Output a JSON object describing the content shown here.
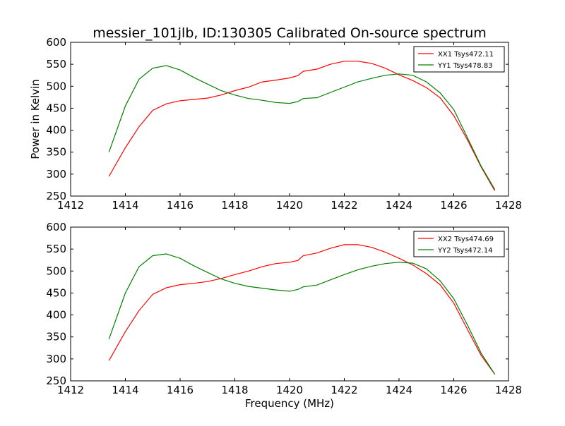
{
  "figure": {
    "title": "messier_101jlb, ID:130305 Calibrated On-source spectrum",
    "xlabel": "Frequency (MHz)",
    "ylabel": "Power in Kelvin"
  },
  "chart_data": [
    {
      "type": "line",
      "title": "messier_101jlb, ID:130305 Calibrated On-source spectrum",
      "xlabel": "",
      "ylabel": "Power in Kelvin",
      "xlim": [
        1412,
        1428
      ],
      "ylim": [
        250,
        600
      ],
      "xticks": [
        1412,
        1414,
        1416,
        1418,
        1420,
        1422,
        1424,
        1426,
        1428
      ],
      "yticks": [
        250,
        300,
        350,
        400,
        450,
        500,
        550,
        600
      ],
      "grid": false,
      "legend": "top-right",
      "series": [
        {
          "name": "XX1 Tsys472.11",
          "color": "#ff0000",
          "x": [
            1413.4,
            1414.0,
            1414.5,
            1415.0,
            1415.5,
            1416.0,
            1416.5,
            1417.0,
            1417.5,
            1418.0,
            1418.5,
            1419.0,
            1419.5,
            1420.0,
            1420.3,
            1420.5,
            1421.0,
            1421.5,
            1422.0,
            1422.5,
            1423.0,
            1423.5,
            1424.0,
            1424.5,
            1425.0,
            1425.5,
            1426.0,
            1426.5,
            1427.0,
            1427.5
          ],
          "y": [
            295,
            360,
            408,
            445,
            460,
            467,
            470,
            473,
            480,
            490,
            498,
            510,
            514,
            519,
            524,
            534,
            539,
            550,
            557,
            557,
            552,
            541,
            526,
            513,
            497,
            474,
            433,
            378,
            316,
            262
          ]
        },
        {
          "name": "YY1 Tsys478.83",
          "color": "#008000",
          "x": [
            1413.4,
            1414.0,
            1414.5,
            1415.0,
            1415.5,
            1416.0,
            1416.5,
            1417.0,
            1417.5,
            1418.0,
            1418.5,
            1419.0,
            1419.5,
            1420.0,
            1420.3,
            1420.5,
            1421.0,
            1421.5,
            1422.0,
            1422.5,
            1423.0,
            1423.5,
            1424.0,
            1424.5,
            1425.0,
            1425.5,
            1426.0,
            1426.5,
            1427.0,
            1427.5
          ],
          "y": [
            350,
            455,
            516,
            541,
            547,
            537,
            520,
            505,
            490,
            480,
            472,
            468,
            463,
            461,
            465,
            472,
            474,
            486,
            498,
            510,
            518,
            525,
            528,
            525,
            510,
            485,
            447,
            383,
            318,
            265
          ]
        }
      ]
    },
    {
      "type": "line",
      "title": "",
      "xlabel": "Frequency (MHz)",
      "ylabel": "",
      "xlim": [
        1412,
        1428
      ],
      "ylim": [
        250,
        600
      ],
      "xticks": [
        1412,
        1414,
        1416,
        1418,
        1420,
        1422,
        1424,
        1426,
        1428
      ],
      "yticks": [
        250,
        300,
        350,
        400,
        450,
        500,
        550,
        600
      ],
      "grid": false,
      "legend": "top-right",
      "series": [
        {
          "name": "XX2 Tsys474.69",
          "color": "#ff0000",
          "x": [
            1413.4,
            1414.0,
            1414.5,
            1415.0,
            1415.5,
            1416.0,
            1416.5,
            1417.0,
            1417.5,
            1418.0,
            1418.5,
            1419.0,
            1419.5,
            1420.0,
            1420.3,
            1420.5,
            1421.0,
            1421.5,
            1422.0,
            1422.5,
            1423.0,
            1423.5,
            1424.0,
            1424.5,
            1425.0,
            1425.5,
            1426.0,
            1426.5,
            1427.0,
            1427.5
          ],
          "y": [
            296,
            362,
            410,
            447,
            462,
            469,
            472,
            476,
            483,
            492,
            500,
            510,
            517,
            520,
            524,
            535,
            541,
            552,
            560,
            560,
            554,
            543,
            529,
            514,
            494,
            469,
            427,
            367,
            308,
            265
          ]
        },
        {
          "name": "YY2 Tsys472.14",
          "color": "#008000",
          "x": [
            1413.4,
            1414.0,
            1414.5,
            1415.0,
            1415.5,
            1416.0,
            1416.5,
            1417.0,
            1417.5,
            1418.0,
            1418.5,
            1419.0,
            1419.5,
            1420.0,
            1420.3,
            1420.5,
            1421.0,
            1421.5,
            1422.0,
            1422.5,
            1423.0,
            1423.5,
            1424.0,
            1424.5,
            1425.0,
            1425.5,
            1426.0,
            1426.5,
            1427.0,
            1427.5
          ],
          "y": [
            345,
            450,
            510,
            535,
            539,
            529,
            512,
            497,
            482,
            472,
            465,
            461,
            457,
            454,
            458,
            464,
            468,
            480,
            492,
            503,
            511,
            517,
            520,
            518,
            505,
            478,
            437,
            377,
            313,
            265
          ]
        }
      ]
    }
  ]
}
